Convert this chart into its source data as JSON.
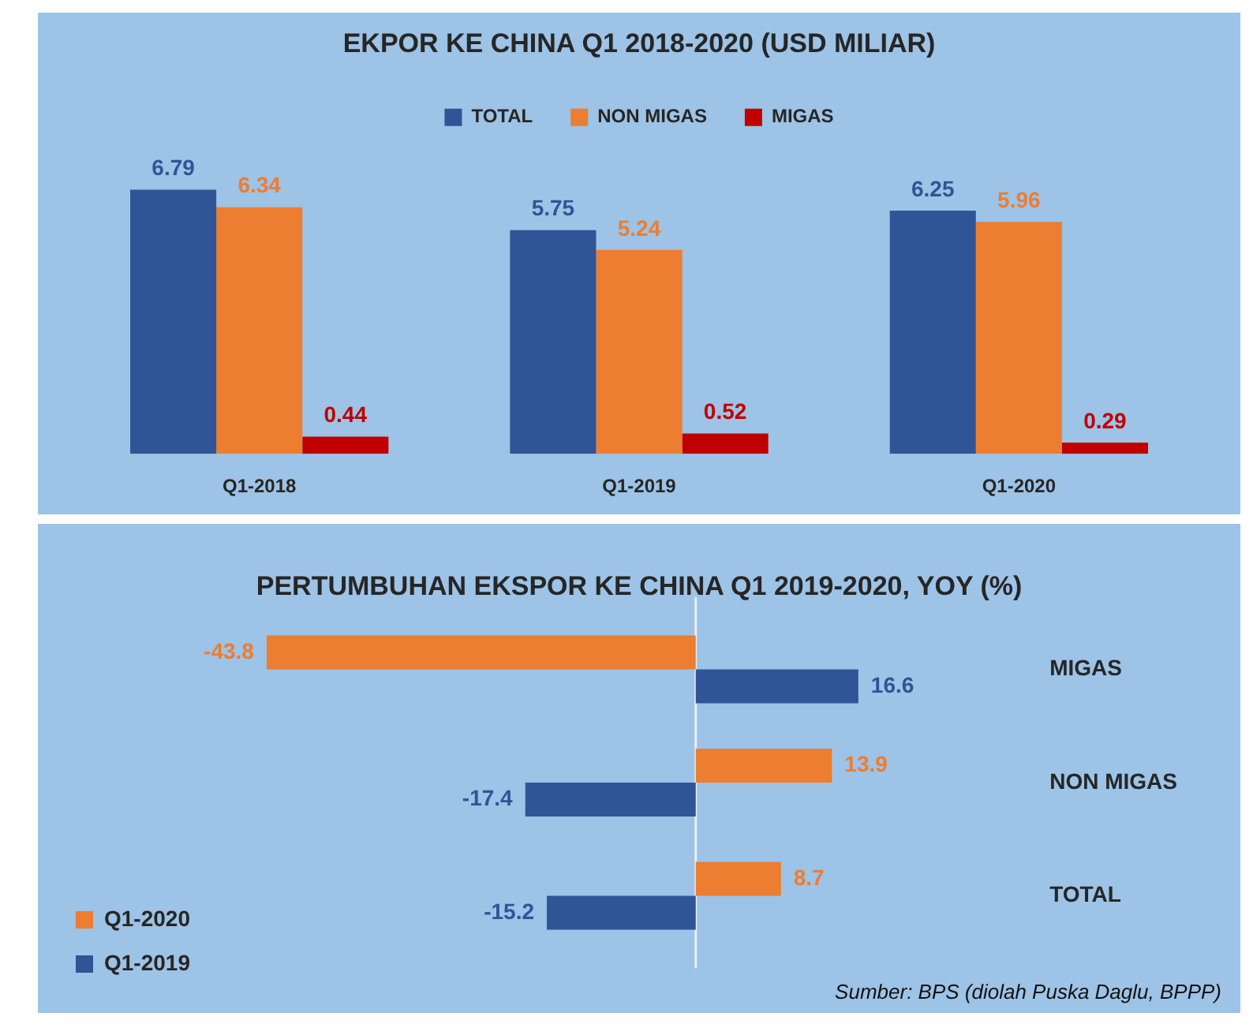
{
  "chart_data": [
    {
      "type": "bar",
      "title": "EKPOR KE CHINA Q1 2018-2020 (USD MILIAR)",
      "categories": [
        "Q1-2018",
        "Q1-2019",
        "Q1-2020"
      ],
      "series": [
        {
          "name": "TOTAL",
          "color": "#2f5597",
          "values": [
            6.79,
            5.75,
            6.25
          ]
        },
        {
          "name": "NON MIGAS",
          "color": "#ed7d31",
          "values": [
            6.34,
            5.24,
            5.96
          ]
        },
        {
          "name": "MIGAS",
          "color": "#c00000",
          "values": [
            0.44,
            0.52,
            0.29
          ]
        }
      ],
      "legend": "top",
      "data_labels": true,
      "tick_labels": "x"
    },
    {
      "type": "bar",
      "orientation": "horizontal",
      "title": "PERTUMBUHAN EKSPOR KE CHINA Q1 2019-2020, YOY (%)",
      "categories": [
        "MIGAS",
        "NON MIGAS",
        "TOTAL"
      ],
      "series": [
        {
          "name": "Q1-2020",
          "color": "#ed7d31",
          "values": [
            -43.8,
            13.9,
            8.7
          ]
        },
        {
          "name": "Q1-2019",
          "color": "#2f5597",
          "values": [
            16.6,
            -17.4,
            -15.2
          ]
        }
      ],
      "legend": "bottom left",
      "data_labels": true,
      "tick_labels": "y",
      "annotations": [
        "Sumber: BPS (diolah Puska Daglu, BPPP)"
      ]
    }
  ]
}
